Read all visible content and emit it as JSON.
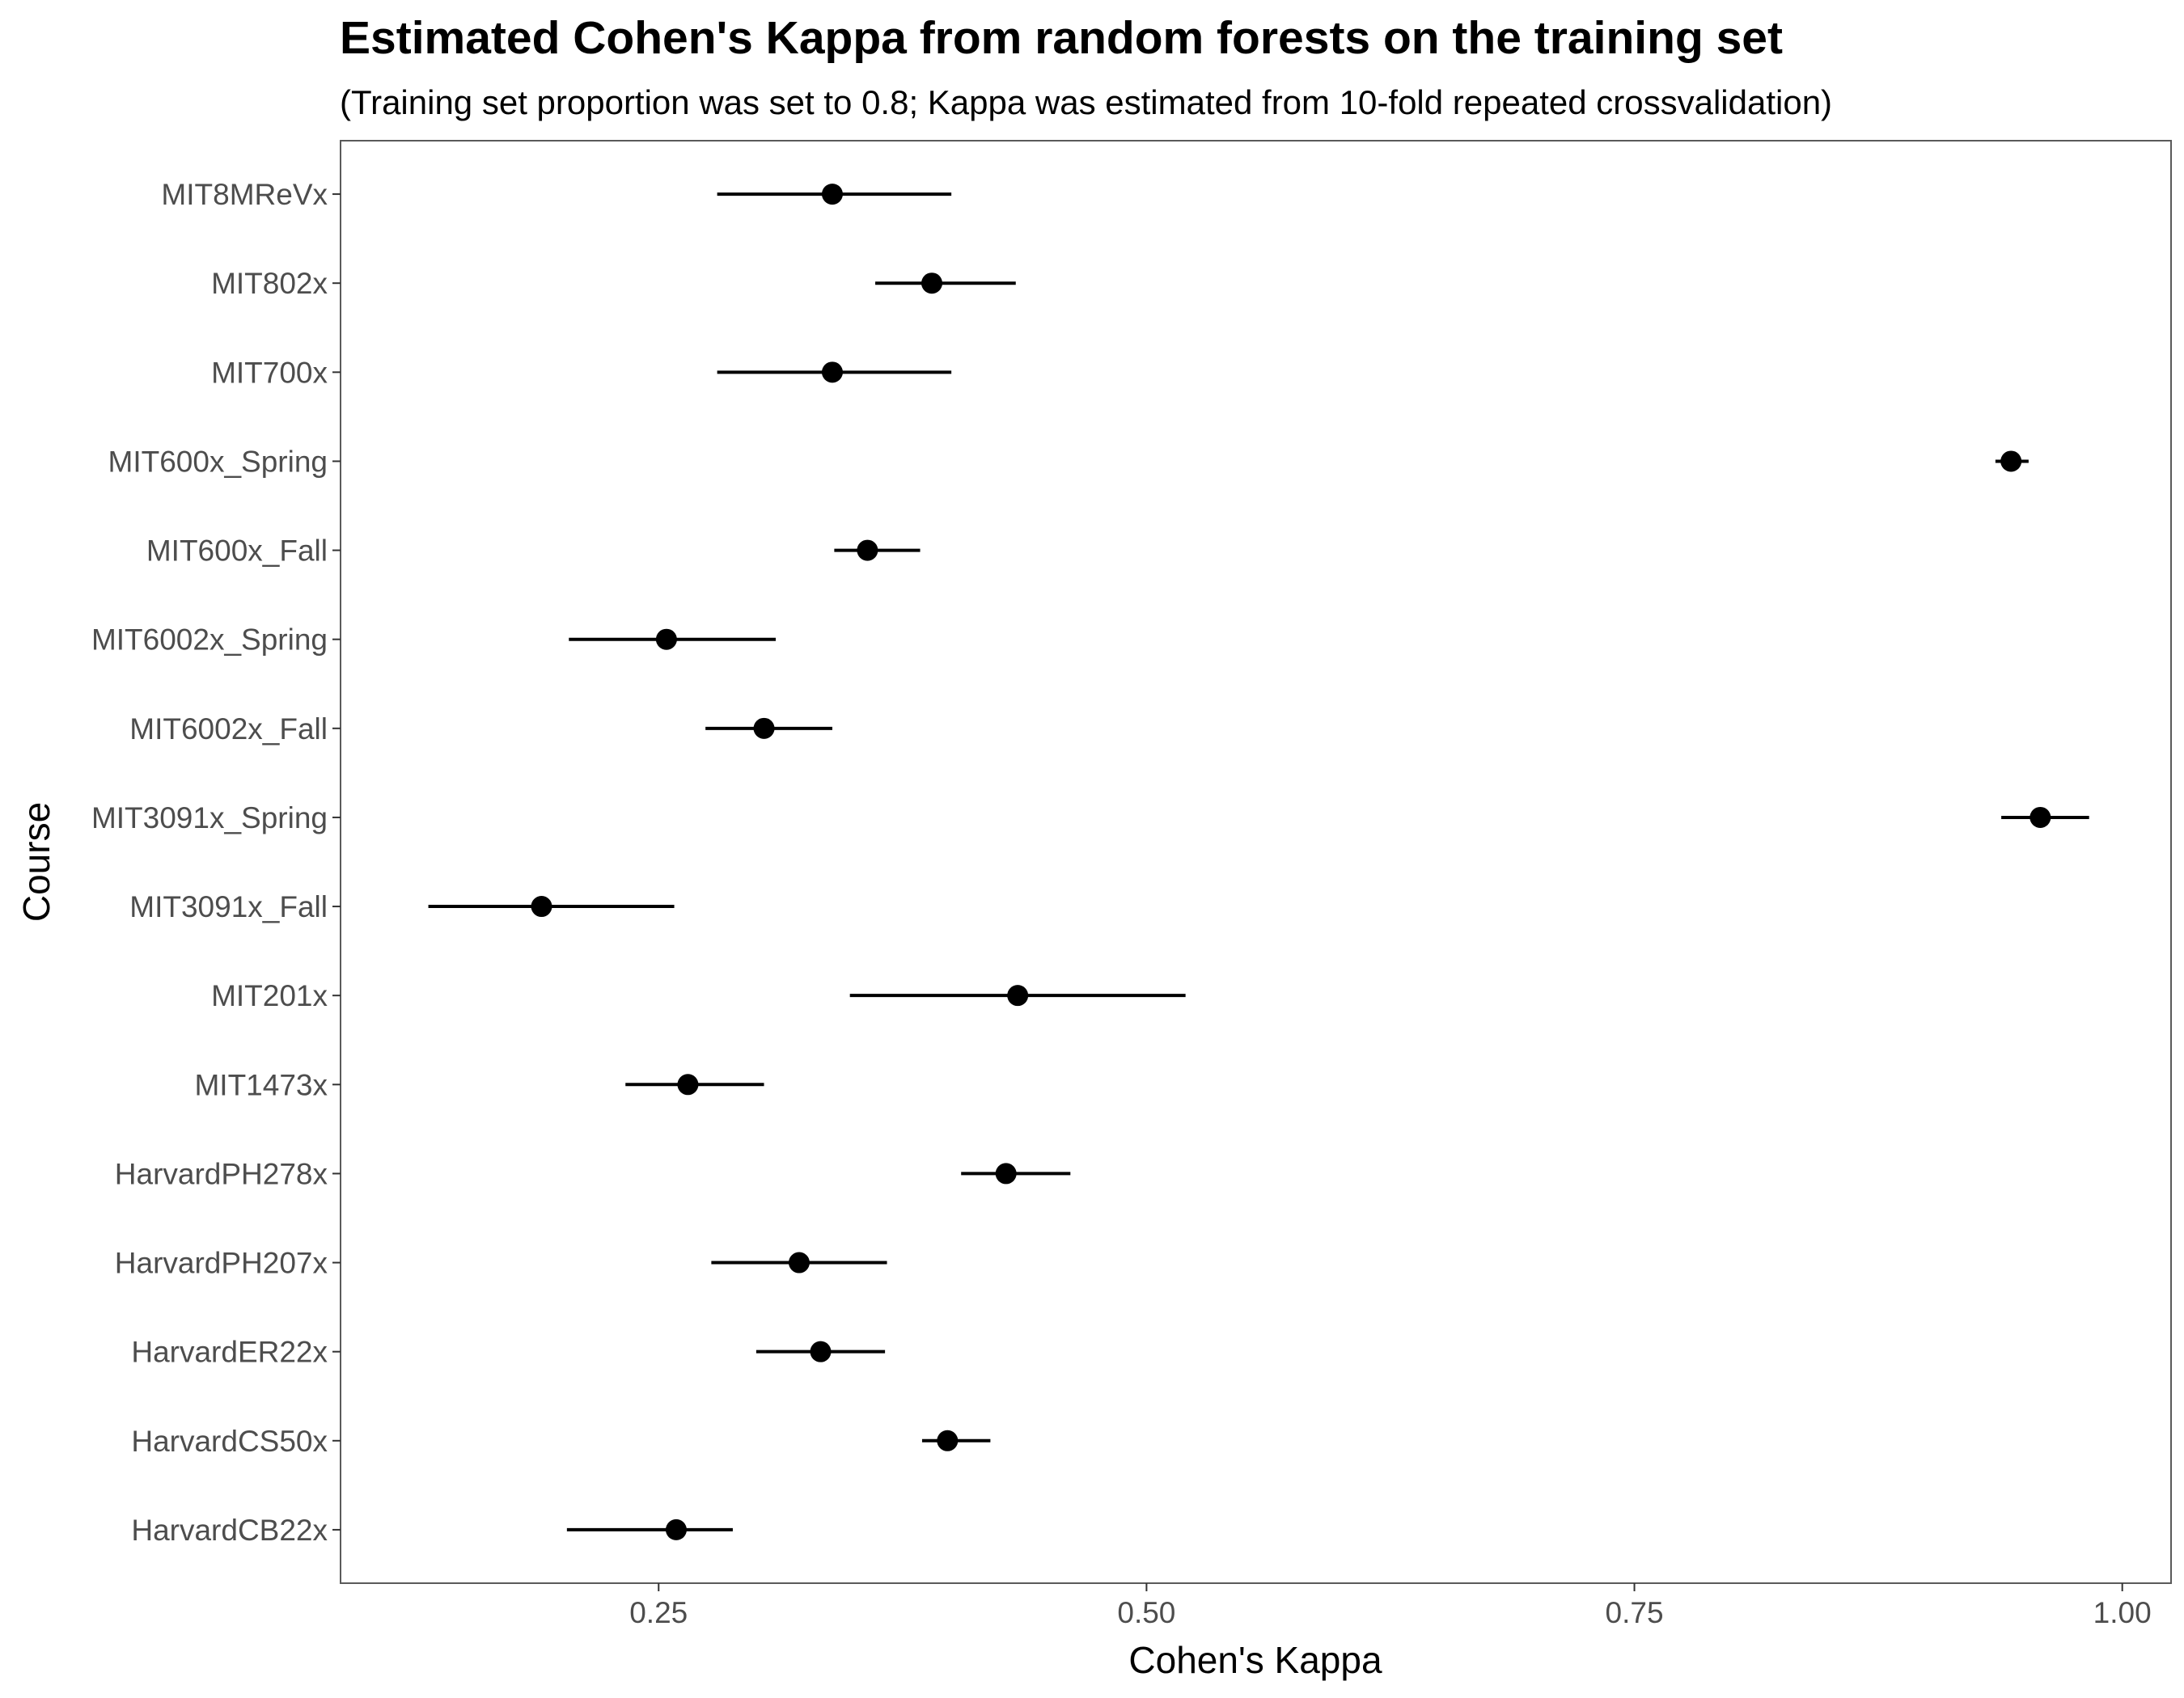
{
  "chart_data": {
    "type": "scatter",
    "subtype": "dot-and-whisker",
    "title": "Estimated Cohen's Kappa from random forests on the training set",
    "subtitle": "(Training set proportion was set to 0.8; Kappa was estimated from 10-fold repeated crossvalidation)",
    "xlabel": "Cohen's Kappa",
    "ylabel": "Course",
    "xlim": [
      0.087,
      1.025
    ],
    "xticks": [
      0.25,
      0.5,
      0.75,
      1.0
    ],
    "xtick_labels": [
      "0.25",
      "0.50",
      "0.75",
      "1.00"
    ],
    "grid": false,
    "legend": "none",
    "point_color": "#000000",
    "categories": [
      "MIT8MReVx",
      "MIT802x",
      "MIT700x",
      "MIT600x_Spring",
      "MIT600x_Fall",
      "MIT6002x_Spring",
      "MIT6002x_Fall",
      "MIT3091x_Spring",
      "MIT3091x_Fall",
      "MIT201x",
      "MIT1473x",
      "HarvardPH278x",
      "HarvardPH207x",
      "HarvardER22x",
      "HarvardCS50x",
      "HarvardCB22x"
    ],
    "values": [
      0.339,
      0.39,
      0.339,
      0.943,
      0.357,
      0.254,
      0.304,
      0.958,
      0.19,
      0.434,
      0.265,
      0.428,
      0.322,
      0.333,
      0.398,
      0.259
    ],
    "lower": [
      0.28,
      0.361,
      0.28,
      0.935,
      0.34,
      0.204,
      0.274,
      0.938,
      0.132,
      0.348,
      0.233,
      0.405,
      0.277,
      0.3,
      0.385,
      0.203
    ],
    "upper": [
      0.4,
      0.433,
      0.4,
      0.952,
      0.384,
      0.31,
      0.339,
      0.983,
      0.258,
      0.52,
      0.304,
      0.461,
      0.367,
      0.366,
      0.42,
      0.288
    ]
  }
}
